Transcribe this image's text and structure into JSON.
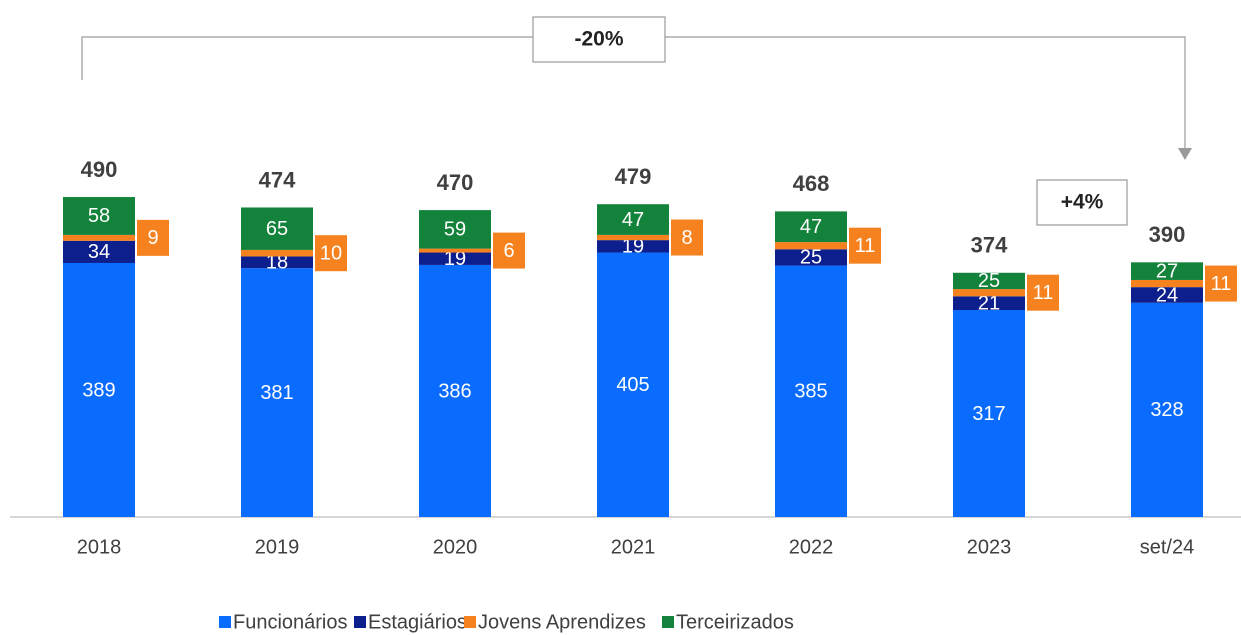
{
  "chart_data": {
    "type": "stacked-bar",
    "categories": [
      "2018",
      "2019",
      "2020",
      "2021",
      "2022",
      "2023",
      "set/24"
    ],
    "series": [
      {
        "name": "Funcionários",
        "color": "#0a6cff",
        "values": [
          389,
          381,
          386,
          405,
          385,
          317,
          328
        ]
      },
      {
        "name": "Estagiários",
        "color": "#0d1f8c",
        "values": [
          34,
          18,
          19,
          19,
          25,
          21,
          24
        ]
      },
      {
        "name": "Jovens Aprendizes",
        "color": "#f5821f",
        "values": [
          9,
          10,
          6,
          8,
          11,
          11,
          11
        ]
      },
      {
        "name": "Terceirizados",
        "color": "#13823a",
        "values": [
          58,
          65,
          59,
          47,
          47,
          25,
          27
        ]
      }
    ],
    "totals": [
      490,
      474,
      470,
      479,
      468,
      374,
      390
    ],
    "annotations": [
      "-20%",
      "+4%"
    ],
    "legend": "bottom"
  }
}
